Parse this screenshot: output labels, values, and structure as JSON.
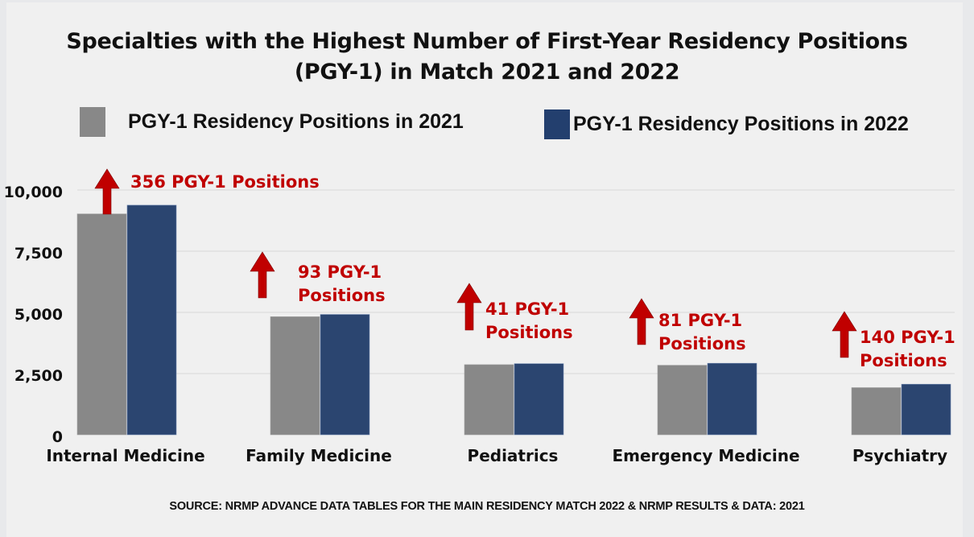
{
  "title_lines": [
    "Specialties with the Highest Number of First-Year Residency Positions",
    "(PGY-1) in Match 2021 and 2022"
  ],
  "legend": [
    {
      "label": "PGY-1 Residency Positions in 2021",
      "color": "#888888"
    },
    {
      "label": "PGY-1 Residency Positions in 2022",
      "color": "#233f6e"
    }
  ],
  "source": "SOURCE: NRMP ADVANCE DATA TABLES FOR THE MAIN RESIDENCY MATCH 2022 & NRMP RESULTS & DATA: 2021",
  "colors": {
    "series_2021": "#888888",
    "series_2022": "#2b4570",
    "annotation": "#c00000",
    "gridline": "#d8d8d8"
  },
  "chart_data": {
    "type": "bar",
    "title": "Specialties with the Highest Number of First-Year Residency Positions (PGY-1) in Match 2021 and 2022",
    "xlabel": "",
    "ylabel": "",
    "ylim": [
      0,
      10000
    ],
    "yticks": [
      0,
      2500,
      5000,
      7500,
      10000
    ],
    "ytick_labels": [
      "0",
      "2,500",
      "5,000",
      "7,500",
      "10,000"
    ],
    "grid": true,
    "legend_position": "top",
    "categories": [
      "Internal Medicine",
      "Family Medicine",
      "Pediatrics",
      "Emergency Medicine",
      "Psychiatry"
    ],
    "series": [
      {
        "name": "PGY-1 Residency Positions in 2021",
        "values": [
          9024,
          4823,
          2864,
          2840,
          1925
        ]
      },
      {
        "name": "PGY-1 Residency Positions in 2022",
        "values": [
          9380,
          4916,
          2905,
          2921,
          2065
        ]
      }
    ],
    "annotations": [
      {
        "category": "Internal Medicine",
        "lines": [
          "356 PGY-1 Positions"
        ],
        "icon": "up-arrow"
      },
      {
        "category": "Family Medicine",
        "lines": [
          "93 PGY-1",
          "Positions"
        ],
        "icon": "up-arrow"
      },
      {
        "category": "Pediatrics",
        "lines": [
          "41 PGY-1",
          "Positions"
        ],
        "icon": "up-arrow"
      },
      {
        "category": "Emergency Medicine",
        "lines": [
          "81 PGY-1",
          "Positions"
        ],
        "icon": "up-arrow"
      },
      {
        "category": "Psychiatry",
        "lines": [
          "140 PGY-1",
          "Positions"
        ],
        "icon": "up-arrow"
      }
    ]
  }
}
